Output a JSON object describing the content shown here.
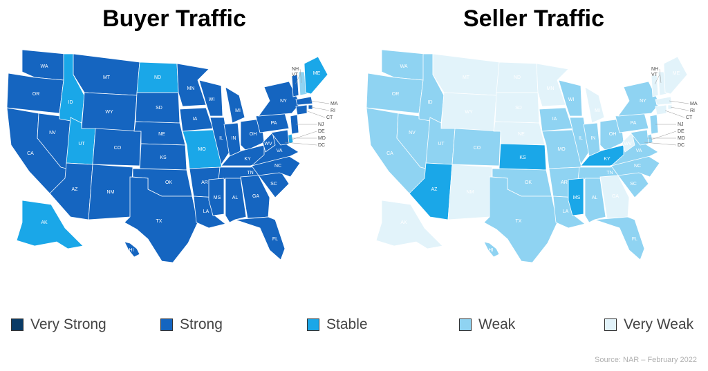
{
  "titles": {
    "left": "Buyer Traffic",
    "right": "Seller Traffic"
  },
  "colors": {
    "very_strong": "#0a3b66",
    "strong": "#1565c0",
    "stable": "#1aa7e8",
    "weak": "#8fd3f2",
    "very_weak": "#e2f3fa"
  },
  "legend": [
    {
      "key": "very_strong",
      "label": "Very Strong"
    },
    {
      "key": "strong",
      "label": "Strong"
    },
    {
      "key": "stable",
      "label": "Stable"
    },
    {
      "key": "weak",
      "label": "Weak"
    },
    {
      "key": "very_weak",
      "label": "Very Weak"
    }
  ],
  "source": "Source: NAR – February 2022",
  "external_labels": [
    "NH",
    "VT",
    "MA",
    "RI",
    "CT",
    "NJ",
    "DE",
    "MD",
    "DC"
  ],
  "buyer_states": {
    "WA": "strong",
    "OR": "strong",
    "CA": "strong",
    "NV": "strong",
    "ID": "stable",
    "MT": "strong",
    "WY": "strong",
    "UT": "stable",
    "AZ": "strong",
    "CO": "strong",
    "NM": "strong",
    "ND": "stable",
    "SD": "strong",
    "NE": "strong",
    "KS": "strong",
    "OK": "strong",
    "TX": "strong",
    "MN": "strong",
    "IA": "strong",
    "MO": "stable",
    "AR": "strong",
    "LA": "strong",
    "WI": "strong",
    "IL": "strong",
    "MI": "strong",
    "IN": "strong",
    "OH": "strong",
    "KY": "strong",
    "TN": "strong",
    "MS": "strong",
    "AL": "strong",
    "GA": "strong",
    "FL": "strong",
    "SC": "strong",
    "NC": "strong",
    "VA": "strong",
    "WV": "strong",
    "PA": "strong",
    "NY": "strong",
    "ME": "stable",
    "NH": "weak",
    "VT": "strong",
    "MA": "strong",
    "RI": "strong",
    "CT": "strong",
    "NJ": "strong",
    "DE": "stable",
    "MD": "strong",
    "AK": "stable",
    "HI": "strong"
  },
  "seller_states": {
    "WA": "weak",
    "OR": "weak",
    "CA": "weak",
    "NV": "weak",
    "ID": "weak",
    "MT": "very_weak",
    "WY": "very_weak",
    "UT": "weak",
    "AZ": "stable",
    "CO": "weak",
    "NM": "very_weak",
    "ND": "very_weak",
    "SD": "very_weak",
    "NE": "very_weak",
    "KS": "stable",
    "OK": "weak",
    "TX": "weak",
    "MN": "very_weak",
    "IA": "weak",
    "MO": "weak",
    "AR": "weak",
    "LA": "weak",
    "WI": "weak",
    "IL": "weak",
    "MI": "very_weak",
    "IN": "weak",
    "OH": "weak",
    "KY": "stable",
    "TN": "weak",
    "MS": "stable",
    "AL": "weak",
    "GA": "very_weak",
    "FL": "weak",
    "SC": "weak",
    "NC": "weak",
    "VA": "weak",
    "WV": "very_weak",
    "PA": "weak",
    "NY": "weak",
    "ME": "very_weak",
    "NH": "very_weak",
    "VT": "very_weak",
    "MA": "very_weak",
    "RI": "very_weak",
    "CT": "very_weak",
    "NJ": "weak",
    "DE": "weak",
    "MD": "weak",
    "AK": "very_weak",
    "HI": "weak"
  }
}
